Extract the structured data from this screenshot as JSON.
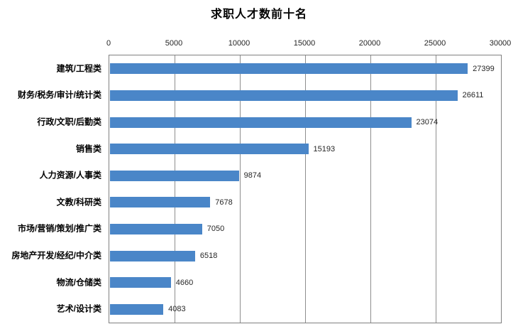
{
  "chart_data": {
    "type": "bar",
    "orientation": "horizontal",
    "title": "求职人才数前十名",
    "categories": [
      "建筑/工程类",
      "财务/税务/审计/统计类",
      "行政/文职/后勤类",
      "销售类",
      "人力资源/人事类",
      "文教/科研类",
      "市场/营销/策划/推广类",
      "房地产开发/经纪/中介类",
      "物流/仓储类",
      "艺术/设计类"
    ],
    "values": [
      27399,
      26611,
      23074,
      15193,
      9874,
      7678,
      7050,
      6518,
      4660,
      4083
    ],
    "x_ticks": [
      0,
      5000,
      10000,
      15000,
      20000,
      25000,
      30000
    ],
    "xlim": [
      0,
      30000
    ],
    "xlabel": "",
    "ylabel": "",
    "axis_position": "top",
    "grid": "vertical",
    "legend": "none",
    "data_labels_shown": true,
    "colors": {
      "bar": "#4a86c8",
      "gridline": "#8e8e8e",
      "plot_border": "#808080",
      "title_text": "#000000",
      "label_text": "#262626",
      "background": "#ffffff"
    }
  }
}
